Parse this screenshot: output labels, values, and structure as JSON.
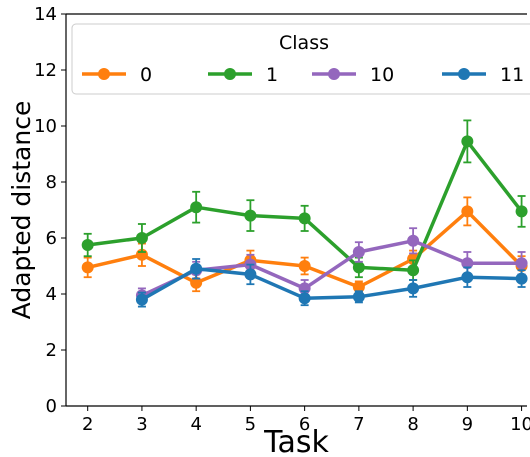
{
  "chart_data": {
    "type": "line",
    "xlabel": "Task",
    "ylabel": "Adapted distance",
    "ylim": [
      0,
      14
    ],
    "xlim": [
      1.6,
      10.1
    ],
    "x_ticks": [
      2,
      3,
      4,
      5,
      6,
      7,
      8,
      9,
      10
    ],
    "y_ticks": [
      0,
      2,
      4,
      6,
      8,
      10,
      12,
      14
    ],
    "grid": false,
    "legend": {
      "title": "Class",
      "placement": "top",
      "columns": 4
    },
    "series": [
      {
        "name": "0",
        "color": "#ff7f0e",
        "points": [
          {
            "x": 2,
            "y": 4.95,
            "err": 0.35
          },
          {
            "x": 3,
            "y": 5.4,
            "err": 0.4
          },
          {
            "x": 4,
            "y": 4.4,
            "err": 0.3
          },
          {
            "x": 5,
            "y": 5.2,
            "err": 0.35
          },
          {
            "x": 6,
            "y": 5.0,
            "err": 0.3
          },
          {
            "x": 7,
            "y": 4.25,
            "err": 0.2
          },
          {
            "x": 8,
            "y": 5.25,
            "err": 0.3
          },
          {
            "x": 9,
            "y": 6.95,
            "err": 0.5
          },
          {
            "x": 10,
            "y": 5.0,
            "err": 0.35
          }
        ]
      },
      {
        "name": "1",
        "color": "#2ca02c",
        "points": [
          {
            "x": 2,
            "y": 5.75,
            "err": 0.4
          },
          {
            "x": 3,
            "y": 6.0,
            "err": 0.5
          },
          {
            "x": 4,
            "y": 7.1,
            "err": 0.55
          },
          {
            "x": 5,
            "y": 6.8,
            "err": 0.55
          },
          {
            "x": 6,
            "y": 6.7,
            "err": 0.45
          },
          {
            "x": 7,
            "y": 4.95,
            "err": 0.35
          },
          {
            "x": 8,
            "y": 4.85,
            "err": 0.35
          },
          {
            "x": 9,
            "y": 9.45,
            "err": 0.75
          },
          {
            "x": 10,
            "y": 6.95,
            "err": 0.55
          }
        ]
      },
      {
        "name": "10",
        "color": "#9467bd",
        "points": [
          {
            "x": 3,
            "y": 3.95,
            "err": 0.25
          },
          {
            "x": 4,
            "y": 4.85,
            "err": 0.3
          },
          {
            "x": 5,
            "y": 5.05,
            "err": 0.35
          },
          {
            "x": 6,
            "y": 4.2,
            "err": 0.3
          },
          {
            "x": 7,
            "y": 5.5,
            "err": 0.35
          },
          {
            "x": 8,
            "y": 5.9,
            "err": 0.45
          },
          {
            "x": 9,
            "y": 5.1,
            "err": 0.4
          },
          {
            "x": 10,
            "y": 5.1,
            "err": 0.4
          }
        ]
      },
      {
        "name": "11",
        "color": "#1f77b4",
        "points": [
          {
            "x": 3,
            "y": 3.8,
            "err": 0.25
          },
          {
            "x": 4,
            "y": 4.9,
            "err": 0.35
          },
          {
            "x": 5,
            "y": 4.7,
            "err": 0.35
          },
          {
            "x": 6,
            "y": 3.85,
            "err": 0.25
          },
          {
            "x": 7,
            "y": 3.9,
            "err": 0.2
          },
          {
            "x": 8,
            "y": 4.2,
            "err": 0.3
          },
          {
            "x": 9,
            "y": 4.6,
            "err": 0.35
          },
          {
            "x": 10,
            "y": 4.55,
            "err": 0.3
          }
        ]
      }
    ]
  }
}
